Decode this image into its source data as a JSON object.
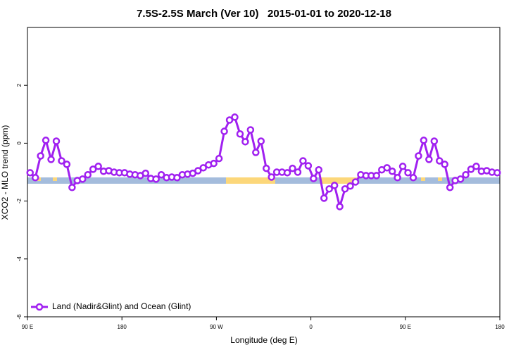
{
  "chart_data": {
    "type": "line",
    "title": "7.5S-2.5S March (Ver 10)   2015-01-01 to 2020-12-18",
    "xlabel": "Longitude (deg E)",
    "ylabel": "XCO2 - MLO trend (ppm)",
    "xlim": [
      90,
      540
    ],
    "xticks": [
      {
        "value": 90,
        "label": "90 E"
      },
      {
        "value": 180,
        "label": "180"
      },
      {
        "value": 270,
        "label": "90 W"
      },
      {
        "value": 360,
        "label": "0"
      },
      {
        "value": 450,
        "label": "90 E"
      },
      {
        "value": 540,
        "label": "180"
      }
    ],
    "ylim": [
      -6,
      4
    ],
    "yticks": [
      -6,
      -4,
      -2,
      0,
      2
    ],
    "legend": "lower left",
    "series": [
      {
        "name": "Land (Nadir&Glint) and Ocean (Glint)",
        "color": "#a020f0",
        "x": [
          92.5,
          97.5,
          102.5,
          107.5,
          112.5,
          117.5,
          122.5,
          127.5,
          132.5,
          137.5,
          142.5,
          147.5,
          152.5,
          157.5,
          162.5,
          167.5,
          172.5,
          177.5,
          182.5,
          187.5,
          192.5,
          197.5,
          202.5,
          207.5,
          212.5,
          217.5,
          222.5,
          227.5,
          232.5,
          237.5,
          242.5,
          247.5,
          252.5,
          257.5,
          262.5,
          267.5,
          272.5,
          277.5,
          282.5,
          287.5,
          292.5,
          297.5,
          302.5,
          307.5,
          312.5,
          317.5,
          322.5,
          327.5,
          332.5,
          337.5,
          342.5,
          347.5,
          352.5,
          357.5,
          362.5,
          367.5,
          372.5,
          377.5,
          382.5,
          387.5,
          392.5,
          397.5,
          402.5,
          407.5,
          412.5,
          417.5,
          422.5,
          427.5,
          432.5,
          437.5,
          442.5,
          447.5,
          452.5,
          457.5,
          462.5,
          467.5,
          472.5,
          477.5,
          482.5,
          487.5,
          492.5,
          497.5,
          502.5,
          507.5,
          512.5,
          517.5,
          522.5,
          527.5,
          532.5,
          537.5
        ],
        "values": [
          -1.02,
          -1.19,
          -0.44,
          0.1,
          -0.56,
          0.07,
          -0.61,
          -0.73,
          -1.53,
          -1.29,
          -1.24,
          -1.09,
          -0.9,
          -0.8,
          -0.97,
          -0.95,
          -1.0,
          -1.02,
          -1.02,
          -1.07,
          -1.09,
          -1.12,
          -1.04,
          -1.22,
          -1.24,
          -1.09,
          -1.19,
          -1.17,
          -1.19,
          -1.09,
          -1.07,
          -1.04,
          -0.95,
          -0.85,
          -0.75,
          -0.7,
          -0.53,
          0.41,
          0.8,
          0.9,
          0.32,
          0.05,
          0.46,
          -0.32,
          0.07,
          -0.87,
          -1.17,
          -1.0,
          -1.0,
          -1.02,
          -0.87,
          -1.0,
          -0.61,
          -0.78,
          -1.22,
          -0.92,
          -1.9,
          -1.58,
          -1.46,
          -2.19,
          -1.58,
          -1.48,
          -1.34,
          -1.09,
          -1.12,
          -1.12,
          -1.12,
          -0.92,
          -0.85,
          -0.97,
          -1.19,
          -0.8,
          -1.02,
          -1.19,
          -0.44,
          0.1,
          -0.56,
          0.07,
          -0.61,
          -0.73,
          -1.53,
          -1.29,
          -1.24,
          -1.09,
          -0.9,
          -0.8,
          -0.97,
          -0.95,
          -1.0,
          -1.02
        ]
      }
    ]
  }
}
